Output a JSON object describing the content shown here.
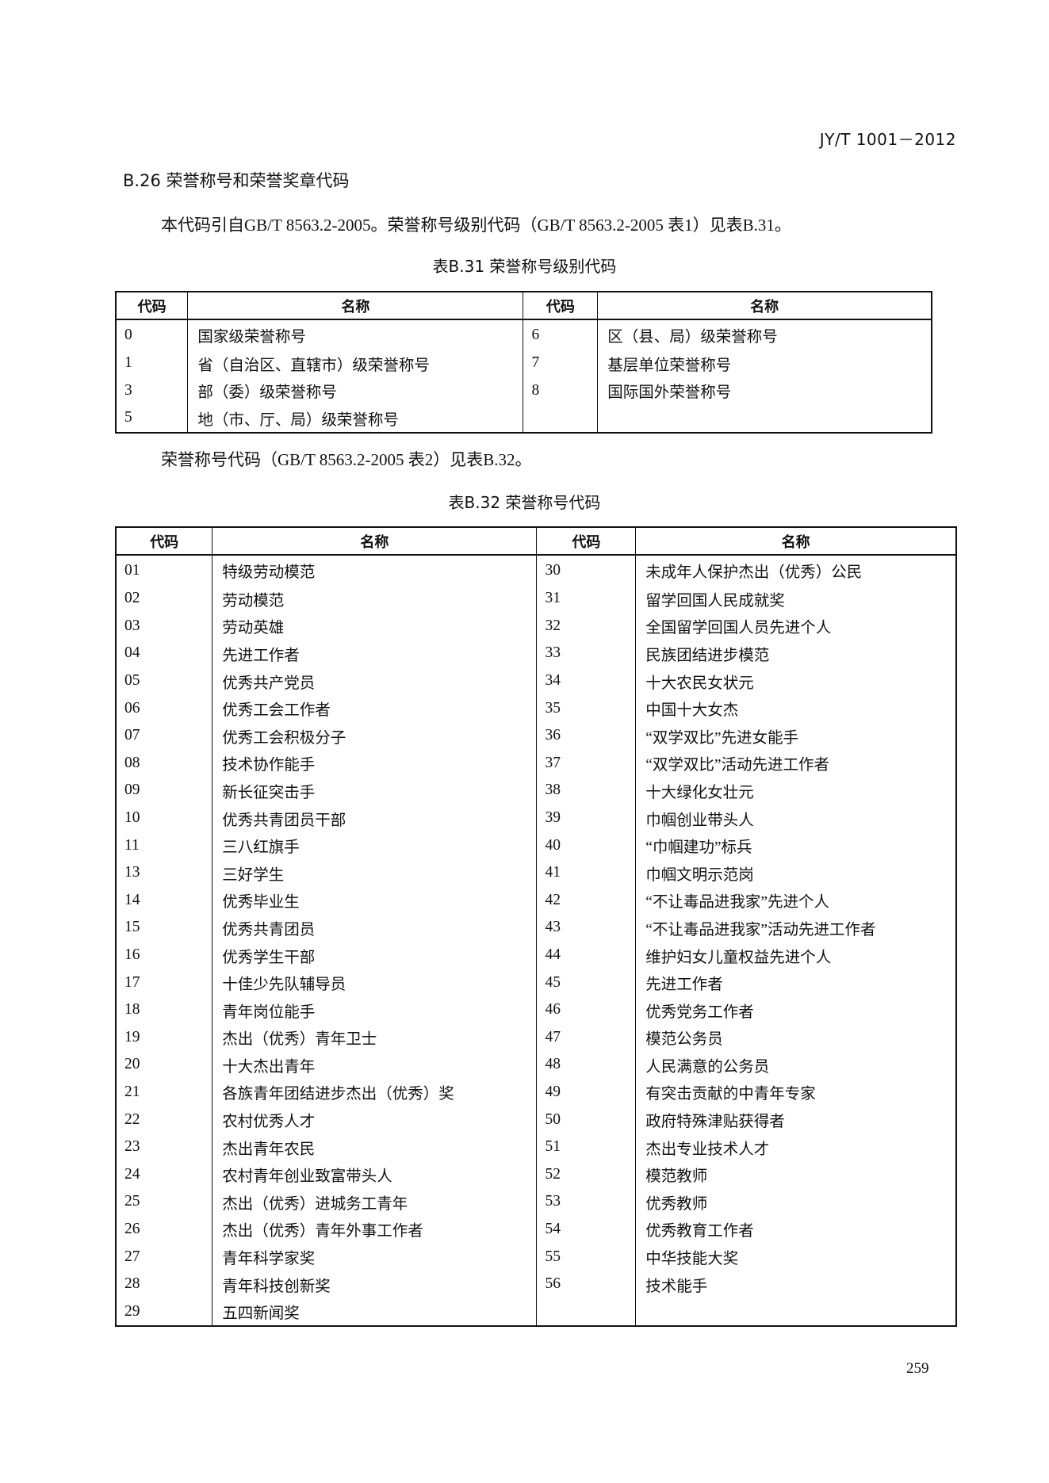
{
  "header": {
    "standard_no": "JY/T 1001－2012"
  },
  "section": {
    "heading": "B.26 荣誉称号和荣誉奖章代码",
    "intro": "本代码引自GB/T 8563.2-2005。荣誉称号级别代码（GB/T 8563.2-2005 表1）见表B.31。"
  },
  "table31": {
    "title": "表B.31 荣誉称号级别代码",
    "headers": [
      "代码",
      "名称",
      "代码",
      "名称"
    ],
    "rows": [
      [
        "0",
        "国家级荣誉称号",
        "6",
        "区（县、局）级荣誉称号"
      ],
      [
        "1",
        "省（自治区、直辖市）级荣誉称号",
        "7",
        "基层单位荣誉称号"
      ],
      [
        "3",
        "部（委）级荣誉称号",
        "8",
        "国际国外荣誉称号"
      ],
      [
        "5",
        "地（市、厅、局）级荣誉称号",
        "",
        ""
      ]
    ]
  },
  "para2": "荣誉称号代码（GB/T 8563.2-2005 表2）见表B.32。",
  "table32": {
    "title": "表B.32 荣誉称号代码",
    "headers": [
      "代码",
      "名称",
      "代码",
      "名称"
    ],
    "rows": [
      [
        "01",
        "特级劳动模范",
        "30",
        "未成年人保护杰出（优秀）公民"
      ],
      [
        "02",
        "劳动模范",
        "31",
        "留学回国人民成就奖"
      ],
      [
        "03",
        "劳动英雄",
        "32",
        "全国留学回国人员先进个人"
      ],
      [
        "04",
        "先进工作者",
        "33",
        "民族团结进步模范"
      ],
      [
        "05",
        "优秀共产党员",
        "34",
        "十大农民女状元"
      ],
      [
        "06",
        "优秀工会工作者",
        "35",
        "中国十大女杰"
      ],
      [
        "07",
        "优秀工会积极分子",
        "36",
        "“双学双比”先进女能手"
      ],
      [
        "08",
        "技术协作能手",
        "37",
        "“双学双比”活动先进工作者"
      ],
      [
        "09",
        "新长征突击手",
        "38",
        "十大绿化女壮元"
      ],
      [
        "10",
        "优秀共青团员干部",
        "39",
        "巾帼创业带头人"
      ],
      [
        "11",
        "三八红旗手",
        "40",
        "“巾帼建功”标兵"
      ],
      [
        "13",
        "三好学生",
        "41",
        "巾帼文明示范岗"
      ],
      [
        "14",
        "优秀毕业生",
        "42",
        "“不让毒品进我家”先进个人"
      ],
      [
        "15",
        "优秀共青团员",
        "43",
        "“不让毒品进我家”活动先进工作者"
      ],
      [
        "16",
        "优秀学生干部",
        "44",
        "维护妇女儿童权益先进个人"
      ],
      [
        "17",
        "十佳少先队辅导员",
        "45",
        "先进工作者"
      ],
      [
        "18",
        "青年岗位能手",
        "46",
        "优秀党务工作者"
      ],
      [
        "19",
        "杰出（优秀）青年卫士",
        "47",
        "模范公务员"
      ],
      [
        "20",
        "十大杰出青年",
        "48",
        "人民满意的公务员"
      ],
      [
        "21",
        "各族青年团结进步杰出（优秀）奖",
        "49",
        "有突击贡献的中青年专家"
      ],
      [
        "22",
        "农村优秀人才",
        "50",
        "政府特殊津贴获得者"
      ],
      [
        "23",
        "杰出青年农民",
        "51",
        "杰出专业技术人才"
      ],
      [
        "24",
        "农村青年创业致富带头人",
        "52",
        "模范教师"
      ],
      [
        "25",
        "杰出（优秀）进城务工青年",
        "53",
        "优秀教师"
      ],
      [
        "26",
        "杰出（优秀）青年外事工作者",
        "54",
        "优秀教育工作者"
      ],
      [
        "27",
        "青年科学家奖",
        "55",
        "中华技能大奖"
      ],
      [
        "28",
        "青年科技创新奖",
        "56",
        "技术能手"
      ],
      [
        "29",
        "五四新闻奖",
        "",
        ""
      ]
    ]
  },
  "footer": {
    "page_number": "259"
  }
}
